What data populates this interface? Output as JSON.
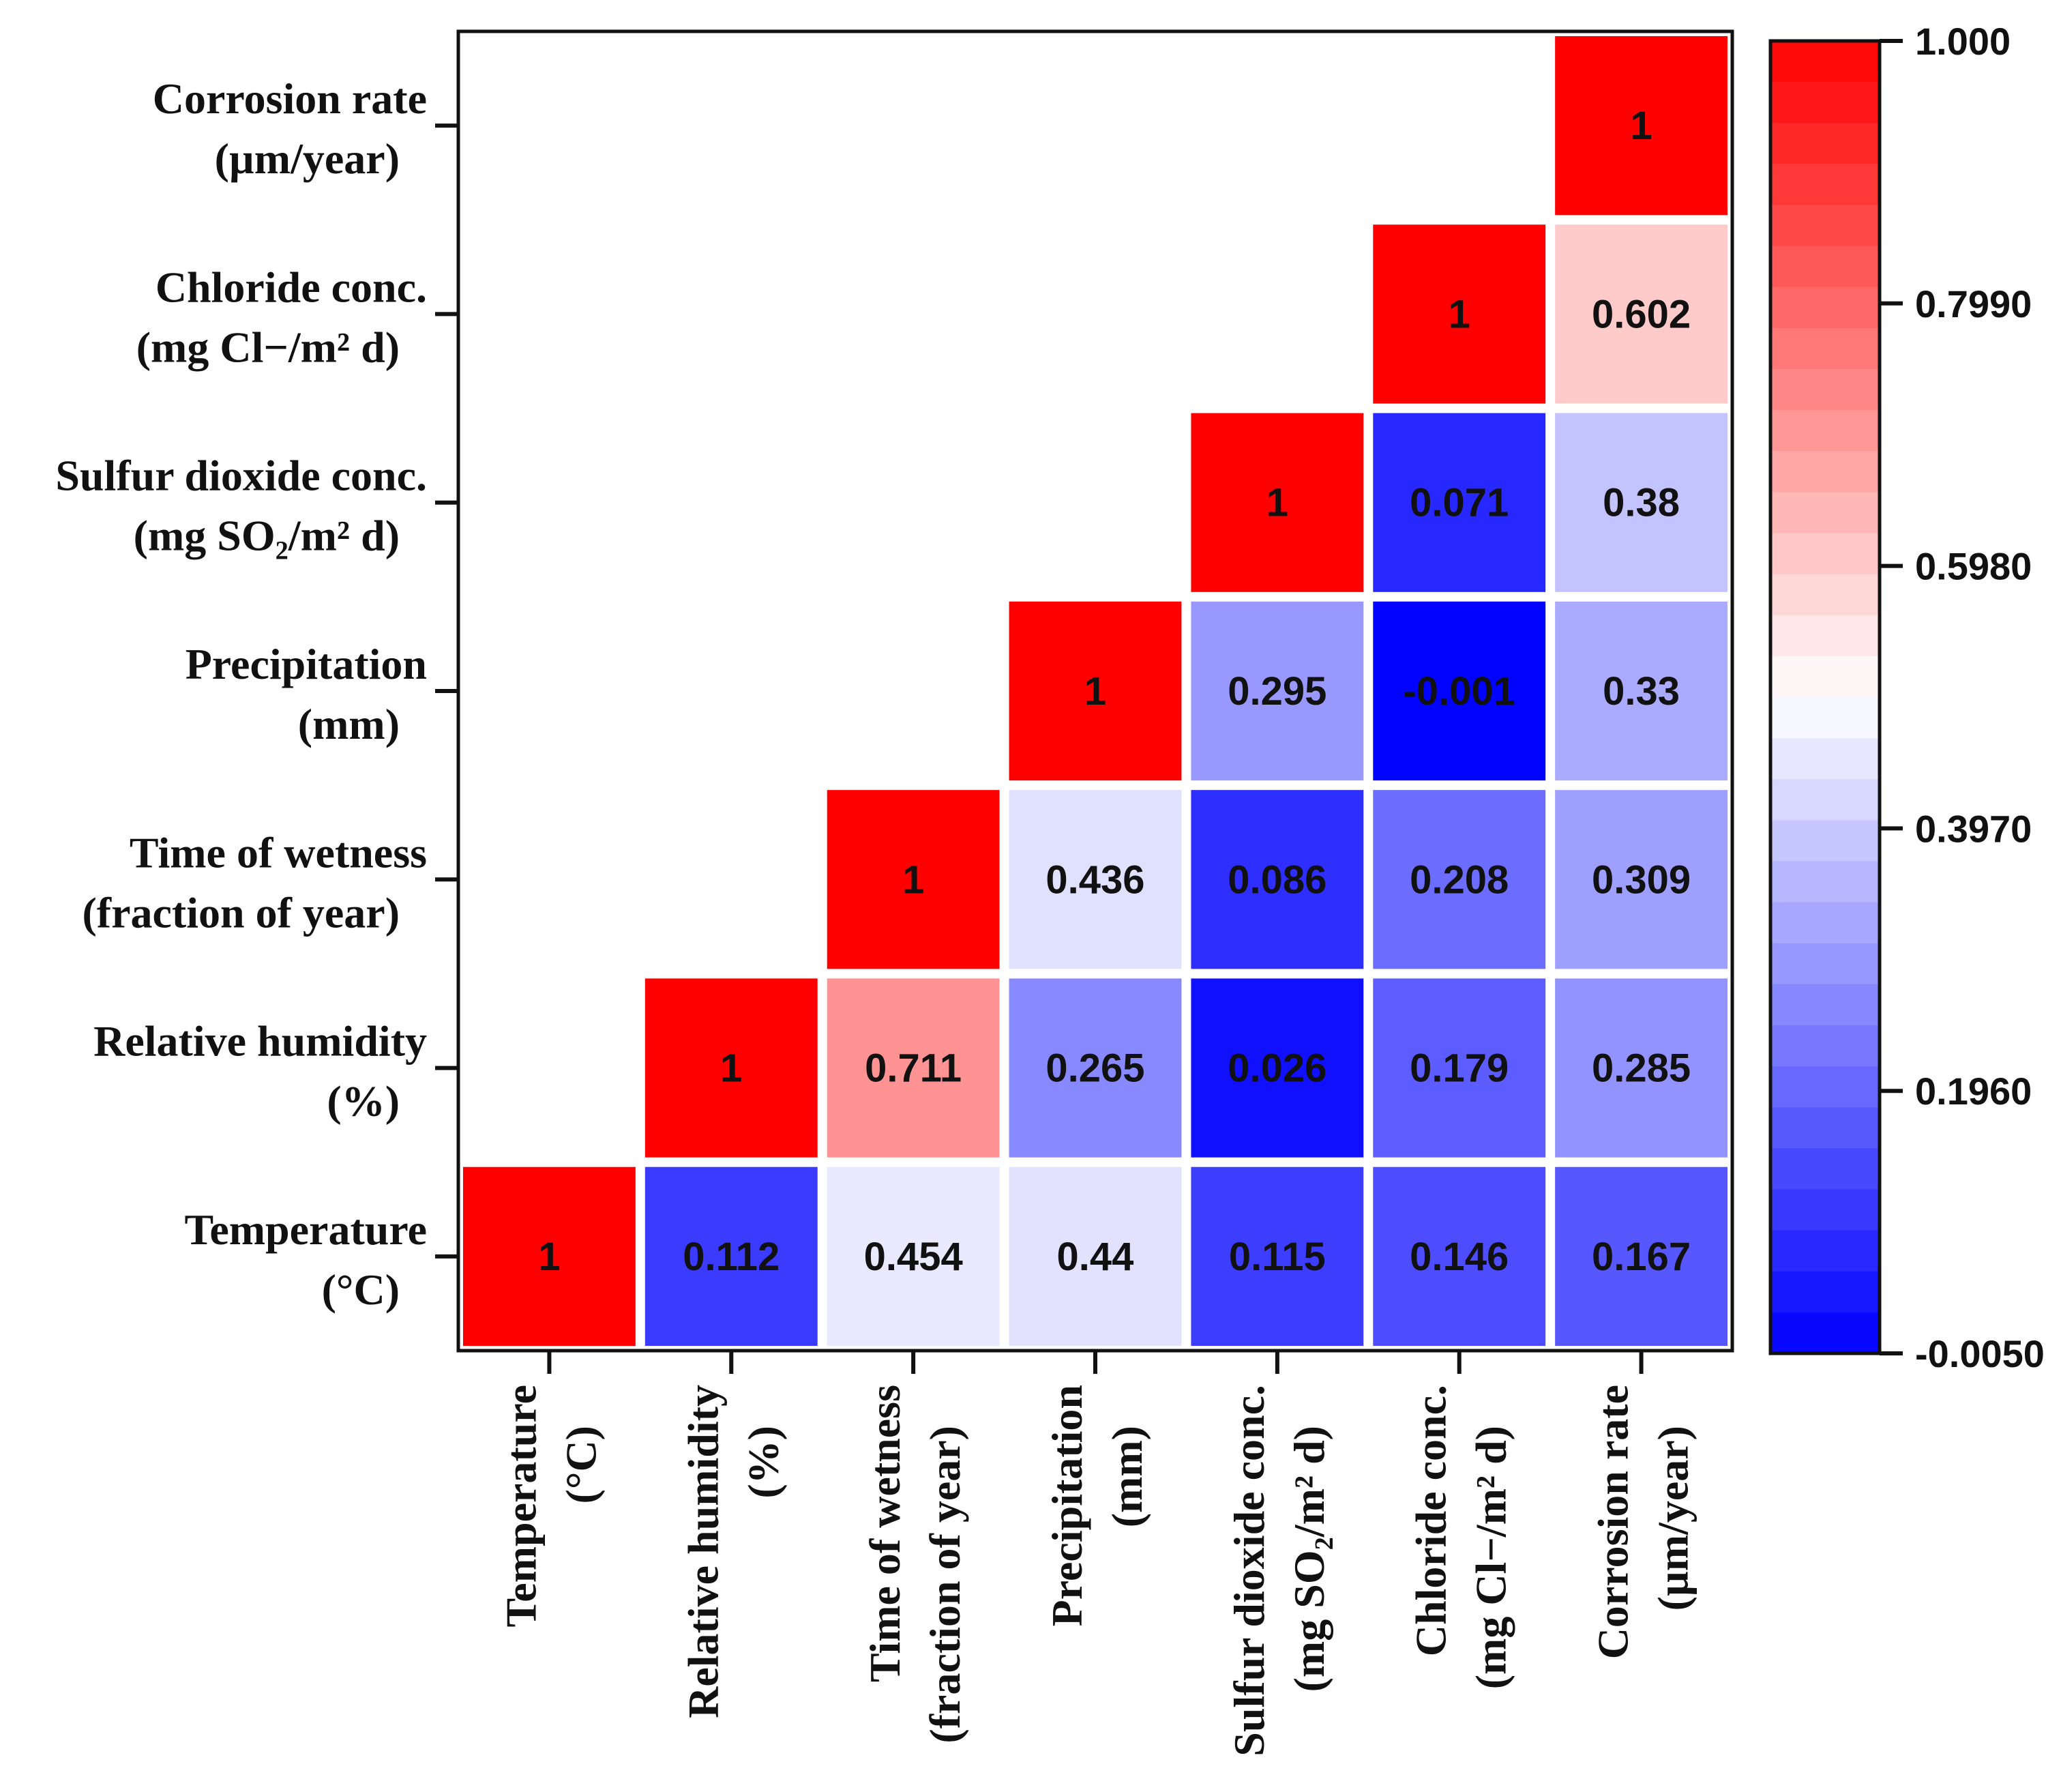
{
  "chart_data": {
    "type": "heatmap",
    "variables": [
      {
        "line1": "Temperature",
        "line2": "(°C)"
      },
      {
        "line1": "Relative humidity",
        "line2": "(%)"
      },
      {
        "line1": "Time of  wetness",
        "line2": "(fraction of year)"
      },
      {
        "line1": "Precipitation",
        "line2": "(mm)"
      },
      {
        "line1": "Sulfur dioxide conc.",
        "line2": "(mg SO₂/m² d)"
      },
      {
        "line1": "Chloride conc.",
        "line2": "(mg Cl−/m² d)"
      },
      {
        "line1": "Corrosion rate",
        "line2": "(µm/year)"
      }
    ],
    "cells": [
      {
        "row": 0,
        "col": 0,
        "value": 1,
        "label": "1"
      },
      {
        "row": 0,
        "col": 1,
        "value": 0.112,
        "label": "0.112"
      },
      {
        "row": 0,
        "col": 2,
        "value": 0.454,
        "label": "0.454"
      },
      {
        "row": 0,
        "col": 3,
        "value": 0.44,
        "label": "0.44"
      },
      {
        "row": 0,
        "col": 4,
        "value": 0.115,
        "label": "0.115"
      },
      {
        "row": 0,
        "col": 5,
        "value": 0.146,
        "label": "0.146"
      },
      {
        "row": 0,
        "col": 6,
        "value": 0.167,
        "label": "0.167"
      },
      {
        "row": 1,
        "col": 1,
        "value": 1,
        "label": "1"
      },
      {
        "row": 1,
        "col": 2,
        "value": 0.711,
        "label": "0.711"
      },
      {
        "row": 1,
        "col": 3,
        "value": 0.265,
        "label": "0.265"
      },
      {
        "row": 1,
        "col": 4,
        "value": 0.026,
        "label": "0.026"
      },
      {
        "row": 1,
        "col": 5,
        "value": 0.179,
        "label": "0.179"
      },
      {
        "row": 1,
        "col": 6,
        "value": 0.285,
        "label": "0.285"
      },
      {
        "row": 2,
        "col": 2,
        "value": 1,
        "label": "1"
      },
      {
        "row": 2,
        "col": 3,
        "value": 0.436,
        "label": "0.436"
      },
      {
        "row": 2,
        "col": 4,
        "value": 0.086,
        "label": "0.086"
      },
      {
        "row": 2,
        "col": 5,
        "value": 0.208,
        "label": "0.208"
      },
      {
        "row": 2,
        "col": 6,
        "value": 0.309,
        "label": "0.309"
      },
      {
        "row": 3,
        "col": 3,
        "value": 1,
        "label": "1"
      },
      {
        "row": 3,
        "col": 4,
        "value": 0.295,
        "label": "0.295"
      },
      {
        "row": 3,
        "col": 5,
        "value": -0.001,
        "label": "-0.001"
      },
      {
        "row": 3,
        "col": 6,
        "value": 0.33,
        "label": "0.33"
      },
      {
        "row": 4,
        "col": 4,
        "value": 1,
        "label": "1"
      },
      {
        "row": 4,
        "col": 5,
        "value": 0.071,
        "label": "0.071"
      },
      {
        "row": 4,
        "col": 6,
        "value": 0.38,
        "label": "0.38"
      },
      {
        "row": 5,
        "col": 5,
        "value": 1,
        "label": "1"
      },
      {
        "row": 5,
        "col": 6,
        "value": 0.602,
        "label": "0.602"
      },
      {
        "row": 6,
        "col": 6,
        "value": 1,
        "label": "1"
      }
    ],
    "colorbar": {
      "min": -0.005,
      "max": 1.0,
      "mid": 0.4975,
      "ticks": [
        "1.000",
        "0.7990",
        "0.5980",
        "0.3970",
        "0.1960",
        "-0.0050"
      ],
      "tick_values": [
        1.0,
        0.799,
        0.598,
        0.397,
        0.196,
        -0.005
      ],
      "low_color": "#0000ff",
      "mid_color": "#ffffff",
      "high_color": "#ff0000",
      "steps": 32
    }
  }
}
